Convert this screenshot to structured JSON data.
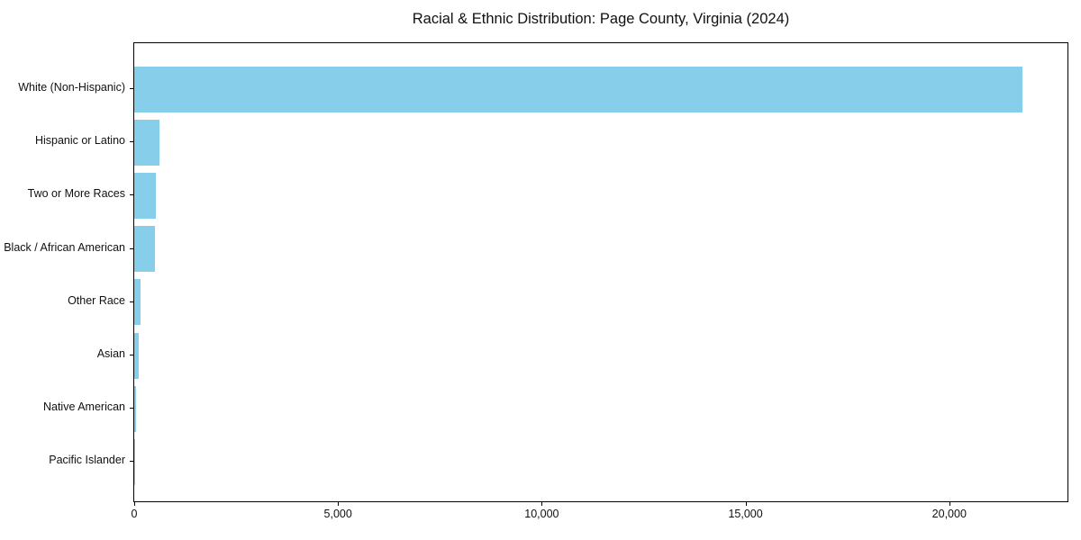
{
  "chart_data": {
    "type": "bar",
    "orientation": "horizontal",
    "title": "Racial & Ethnic Distribution: Page County, Virginia (2024)",
    "xlabel": "",
    "ylabel": "",
    "categories": [
      "White (Non-Hispanic)",
      "Hispanic or Latino",
      "Two or More Races",
      "Black / African American",
      "Other Race",
      "Asian",
      "Native American",
      "Pacific Islander"
    ],
    "values": [
      21800,
      615,
      530,
      505,
      160,
      115,
      40,
      10
    ],
    "xlim": [
      0,
      22900
    ],
    "xticks": [
      0,
      5000,
      10000,
      15000,
      20000
    ],
    "xtick_labels": [
      "0",
      "5,000",
      "10,000",
      "15,000",
      "20,000"
    ],
    "bar_color": "#87CEEB",
    "axis_color": "#000000",
    "grid": false,
    "legend": "none"
  }
}
